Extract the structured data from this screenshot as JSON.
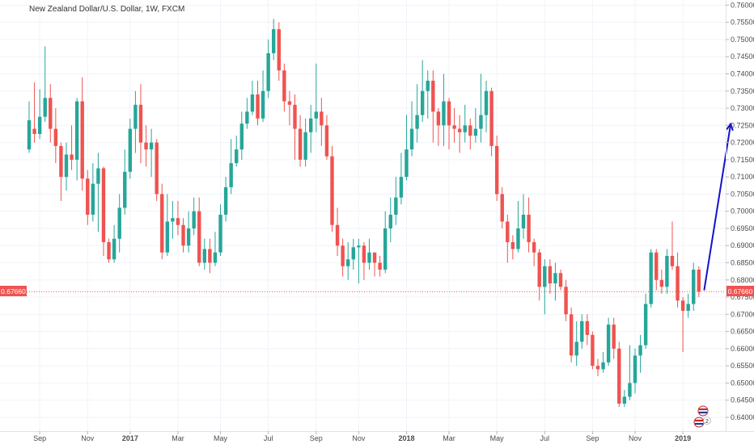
{
  "header": {
    "title": "New Zealand Dollar/U.S. Dollar, 1W, FXCM"
  },
  "current_price": {
    "label": "0.67660",
    "value": 0.6766
  },
  "colors": {
    "up": "#26a69a",
    "down": "#ef5350",
    "projection": "#1212cc",
    "price_line": "#ef5350",
    "grid": "#f0f3fa",
    "axis_text": "#4a4a4a"
  },
  "chart_data": {
    "type": "candlestick",
    "title": "New Zealand Dollar/U.S. Dollar, 1W, FXCM",
    "ylim": [
      0.636,
      0.7615
    ],
    "y_ticks": [
      "0.76000",
      "0.75500",
      "0.75000",
      "0.74500",
      "0.74000",
      "0.73500",
      "0.73000",
      "0.72500",
      "0.72000",
      "0.71500",
      "0.71000",
      "0.70500",
      "0.70000",
      "0.69500",
      "0.69000",
      "0.68500",
      "0.68000",
      "0.67500",
      "0.67000",
      "0.66500",
      "0.66000",
      "0.65500",
      "0.65000",
      "0.64500",
      "0.64000"
    ],
    "x_ticks": [
      {
        "label": "Sep",
        "bold": false,
        "bar": 2
      },
      {
        "label": "Nov",
        "bold": false,
        "bar": 11
      },
      {
        "label": "2017",
        "bold": true,
        "bar": 19
      },
      {
        "label": "Mar",
        "bold": false,
        "bar": 28
      },
      {
        "label": "May",
        "bold": false,
        "bar": 36
      },
      {
        "label": "Jul",
        "bold": false,
        "bar": 45
      },
      {
        "label": "Sep",
        "bold": false,
        "bar": 54
      },
      {
        "label": "Nov",
        "bold": false,
        "bar": 62
      },
      {
        "label": "2018",
        "bold": true,
        "bar": 71
      },
      {
        "label": "Mar",
        "bold": false,
        "bar": 79
      },
      {
        "label": "May",
        "bold": false,
        "bar": 88
      },
      {
        "label": "Jul",
        "bold": false,
        "bar": 97
      },
      {
        "label": "Sep",
        "bold": false,
        "bar": 106
      },
      {
        "label": "Nov",
        "bold": false,
        "bar": 114
      },
      {
        "label": "2019",
        "bold": true,
        "bar": 123
      }
    ],
    "candles": [
      [
        0.718,
        0.7265,
        0.732,
        0.717
      ],
      [
        0.724,
        0.7225,
        0.7375,
        0.72
      ],
      [
        0.7225,
        0.7275,
        0.7355,
        0.721
      ],
      [
        0.7275,
        0.733,
        0.748,
        0.726
      ],
      [
        0.733,
        0.724,
        0.737,
        0.72
      ],
      [
        0.724,
        0.719,
        0.73,
        0.714
      ],
      [
        0.719,
        0.71,
        0.72,
        0.703
      ],
      [
        0.71,
        0.7165,
        0.72,
        0.706
      ],
      [
        0.7165,
        0.715,
        0.725,
        0.712
      ],
      [
        0.715,
        0.732,
        0.733,
        0.709
      ],
      [
        0.732,
        0.7095,
        0.739,
        0.706
      ],
      [
        0.7095,
        0.699,
        0.712,
        0.696
      ],
      [
        0.699,
        0.708,
        0.714,
        0.697
      ],
      [
        0.708,
        0.7125,
        0.717,
        0.694
      ],
      [
        0.7125,
        0.691,
        0.713,
        0.687
      ],
      [
        0.691,
        0.686,
        0.692,
        0.685
      ],
      [
        0.686,
        0.692,
        0.696,
        0.685
      ],
      [
        0.692,
        0.701,
        0.705,
        0.688
      ],
      [
        0.701,
        0.7115,
        0.718,
        0.699
      ],
      [
        0.7115,
        0.724,
        0.727,
        0.7095
      ],
      [
        0.724,
        0.731,
        0.735,
        0.717
      ],
      [
        0.731,
        0.72,
        0.737,
        0.714
      ],
      [
        0.72,
        0.718,
        0.725,
        0.713
      ],
      [
        0.718,
        0.72,
        0.724,
        0.71
      ],
      [
        0.72,
        0.705,
        0.721,
        0.703
      ],
      [
        0.705,
        0.688,
        0.708,
        0.686
      ],
      [
        0.688,
        0.697,
        0.705,
        0.687
      ],
      [
        0.697,
        0.698,
        0.703,
        0.692
      ],
      [
        0.698,
        0.696,
        0.703,
        0.693
      ],
      [
        0.696,
        0.69,
        0.698,
        0.688
      ],
      [
        0.69,
        0.695,
        0.7,
        0.688
      ],
      [
        0.695,
        0.7,
        0.704,
        0.693
      ],
      [
        0.7,
        0.685,
        0.704,
        0.684
      ],
      [
        0.685,
        0.689,
        0.692,
        0.683
      ],
      [
        0.689,
        0.685,
        0.692,
        0.682
      ],
      [
        0.685,
        0.688,
        0.694,
        0.684
      ],
      [
        0.688,
        0.699,
        0.702,
        0.687
      ],
      [
        0.699,
        0.707,
        0.71,
        0.697
      ],
      [
        0.707,
        0.714,
        0.721,
        0.705
      ],
      [
        0.714,
        0.718,
        0.722,
        0.713
      ],
      [
        0.718,
        0.7255,
        0.729,
        0.715
      ],
      [
        0.7255,
        0.729,
        0.733,
        0.724
      ],
      [
        0.729,
        0.734,
        0.738,
        0.728
      ],
      [
        0.734,
        0.727,
        0.738,
        0.725
      ],
      [
        0.727,
        0.735,
        0.741,
        0.726
      ],
      [
        0.735,
        0.746,
        0.75,
        0.733
      ],
      [
        0.746,
        0.753,
        0.756,
        0.744
      ],
      [
        0.753,
        0.741,
        0.755,
        0.738
      ],
      [
        0.741,
        0.732,
        0.743,
        0.729
      ],
      [
        0.732,
        0.731,
        0.735,
        0.725
      ],
      [
        0.731,
        0.724,
        0.734,
        0.715
      ],
      [
        0.724,
        0.715,
        0.728,
        0.713
      ],
      [
        0.715,
        0.723,
        0.727,
        0.713
      ],
      [
        0.723,
        0.727,
        0.731,
        0.717
      ],
      [
        0.727,
        0.729,
        0.743,
        0.723
      ],
      [
        0.729,
        0.725,
        0.733,
        0.719
      ],
      [
        0.725,
        0.716,
        0.728,
        0.715
      ],
      [
        0.716,
        0.696,
        0.719,
        0.694
      ],
      [
        0.696,
        0.69,
        0.701,
        0.687
      ],
      [
        0.69,
        0.684,
        0.692,
        0.681
      ],
      [
        0.684,
        0.686,
        0.691,
        0.68
      ],
      [
        0.686,
        0.6895,
        0.692,
        0.683
      ],
      [
        0.6895,
        0.69,
        0.692,
        0.679
      ],
      [
        0.69,
        0.685,
        0.691,
        0.68
      ],
      [
        0.685,
        0.688,
        0.692,
        0.683
      ],
      [
        0.688,
        0.685,
        0.688,
        0.681
      ],
      [
        0.685,
        0.683,
        0.687,
        0.681
      ],
      [
        0.683,
        0.695,
        0.7,
        0.682
      ],
      [
        0.695,
        0.699,
        0.704,
        0.691
      ],
      [
        0.699,
        0.704,
        0.71,
        0.696
      ],
      [
        0.704,
        0.71,
        0.717,
        0.702
      ],
      [
        0.71,
        0.718,
        0.728,
        0.709
      ],
      [
        0.718,
        0.724,
        0.732,
        0.716
      ],
      [
        0.724,
        0.728,
        0.737,
        0.72
      ],
      [
        0.728,
        0.735,
        0.744,
        0.726
      ],
      [
        0.735,
        0.738,
        0.741,
        0.727
      ],
      [
        0.738,
        0.729,
        0.741,
        0.72
      ],
      [
        0.729,
        0.725,
        0.73,
        0.719
      ],
      [
        0.725,
        0.732,
        0.74,
        0.719
      ],
      [
        0.732,
        0.725,
        0.733,
        0.718
      ],
      [
        0.725,
        0.724,
        0.73,
        0.72
      ],
      [
        0.724,
        0.723,
        0.728,
        0.717
      ],
      [
        0.723,
        0.725,
        0.731,
        0.72
      ],
      [
        0.725,
        0.722,
        0.727,
        0.718
      ],
      [
        0.722,
        0.724,
        0.73,
        0.72
      ],
      [
        0.724,
        0.728,
        0.74,
        0.72
      ],
      [
        0.728,
        0.735,
        0.738,
        0.723
      ],
      [
        0.735,
        0.719,
        0.736,
        0.716
      ],
      [
        0.719,
        0.705,
        0.722,
        0.703
      ],
      [
        0.705,
        0.697,
        0.707,
        0.695
      ],
      [
        0.697,
        0.691,
        0.699,
        0.685
      ],
      [
        0.691,
        0.689,
        0.693,
        0.686
      ],
      [
        0.689,
        0.695,
        0.703,
        0.688
      ],
      [
        0.695,
        0.699,
        0.705,
        0.692
      ],
      [
        0.699,
        0.691,
        0.704,
        0.688
      ],
      [
        0.691,
        0.688,
        0.692,
        0.684
      ],
      [
        0.688,
        0.678,
        0.689,
        0.674
      ],
      [
        0.678,
        0.684,
        0.686,
        0.67
      ],
      [
        0.684,
        0.679,
        0.686,
        0.676
      ],
      [
        0.679,
        0.682,
        0.685,
        0.674
      ],
      [
        0.682,
        0.678,
        0.683,
        0.677
      ],
      [
        0.678,
        0.67,
        0.68,
        0.668
      ],
      [
        0.67,
        0.658,
        0.672,
        0.656
      ],
      [
        0.658,
        0.662,
        0.668,
        0.655
      ],
      [
        0.662,
        0.668,
        0.67,
        0.66
      ],
      [
        0.668,
        0.664,
        0.67,
        0.661
      ],
      [
        0.664,
        0.655,
        0.665,
        0.654
      ],
      [
        0.655,
        0.654,
        0.657,
        0.652
      ],
      [
        0.654,
        0.656,
        0.659,
        0.653
      ],
      [
        0.656,
        0.667,
        0.669,
        0.655
      ],
      [
        0.667,
        0.66,
        0.669,
        0.657
      ],
      [
        0.66,
        0.644,
        0.662,
        0.643
      ],
      [
        0.644,
        0.646,
        0.648,
        0.643
      ],
      [
        0.646,
        0.65,
        0.661,
        0.645
      ],
      [
        0.65,
        0.658,
        0.66,
        0.647
      ],
      [
        0.658,
        0.661,
        0.664,
        0.653
      ],
      [
        0.661,
        0.673,
        0.676,
        0.66
      ],
      [
        0.673,
        0.688,
        0.689,
        0.672
      ],
      [
        0.688,
        0.68,
        0.689,
        0.677
      ],
      [
        0.68,
        0.678,
        0.683,
        0.676
      ],
      [
        0.678,
        0.687,
        0.689,
        0.676
      ],
      [
        0.687,
        0.684,
        0.697,
        0.683
      ],
      [
        0.684,
        0.674,
        0.688,
        0.672
      ],
      [
        0.674,
        0.671,
        0.675,
        0.659
      ],
      [
        0.671,
        0.673,
        0.676,
        0.669
      ],
      [
        0.673,
        0.683,
        0.685,
        0.671
      ],
      [
        0.683,
        0.6766,
        0.684,
        0.675
      ]
    ],
    "projection": {
      "from": {
        "bar": 127,
        "price": 0.677
      },
      "to": {
        "bar": 132,
        "price": 0.7255
      }
    }
  }
}
